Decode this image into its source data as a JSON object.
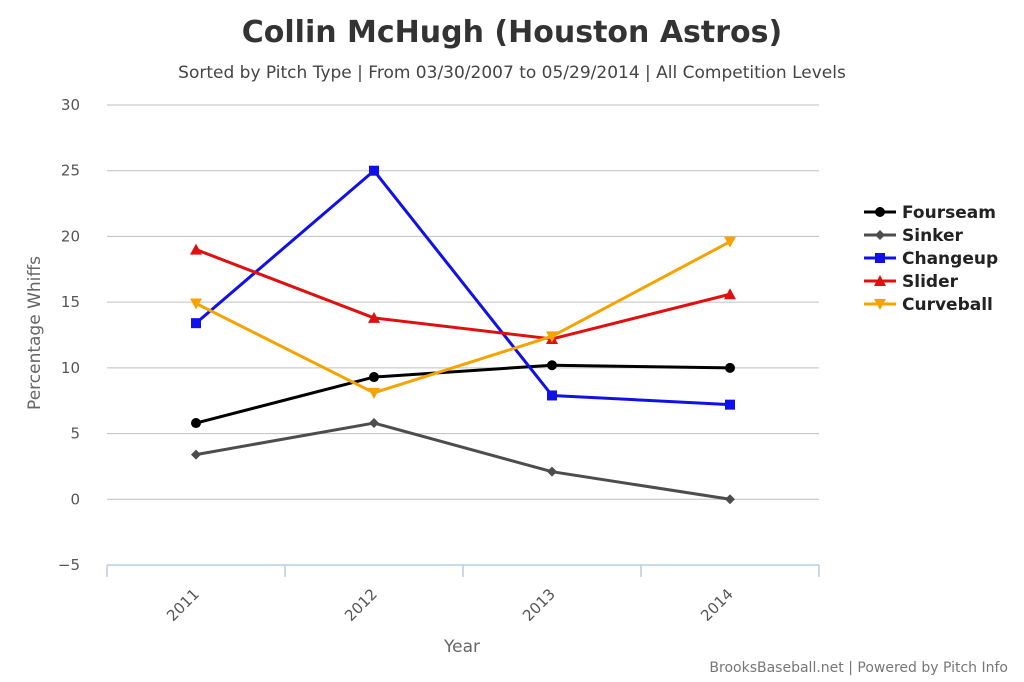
{
  "chart_data": {
    "type": "line",
    "title": "Collin McHugh (Houston Astros)",
    "subtitle": "Sorted by Pitch Type | From 03/30/2007 to 05/29/2014 | All Competition Levels",
    "xlabel": "Year",
    "ylabel": "Percentage Whiffs",
    "categories": [
      "2011",
      "2012",
      "2013",
      "2014"
    ],
    "ylim": [
      -5,
      30
    ],
    "yticks": [
      -5,
      0,
      5,
      10,
      15,
      20,
      25,
      30
    ],
    "grid": true,
    "legend_position": "right",
    "series": [
      {
        "name": "Fourseam",
        "color": "#000000",
        "marker": "circle",
        "values": [
          5.8,
          9.3,
          10.2,
          10.0
        ]
      },
      {
        "name": "Sinker",
        "color": "#4d4d4d",
        "marker": "diamond",
        "values": [
          3.4,
          5.8,
          2.1,
          0.0
        ]
      },
      {
        "name": "Changeup",
        "color": "#1010e8",
        "marker": "square",
        "values": [
          13.4,
          25.0,
          7.9,
          7.2
        ]
      },
      {
        "name": "Slider",
        "color": "#e01010",
        "marker": "triangle-up",
        "values": [
          19.0,
          13.8,
          12.2,
          15.6
        ]
      },
      {
        "name": "Curveball",
        "color": "#f5a300",
        "marker": "triangle-down",
        "values": [
          14.9,
          8.1,
          12.4,
          19.6
        ]
      }
    ],
    "credits": "BrooksBaseball.net | Powered by Pitch Info"
  }
}
